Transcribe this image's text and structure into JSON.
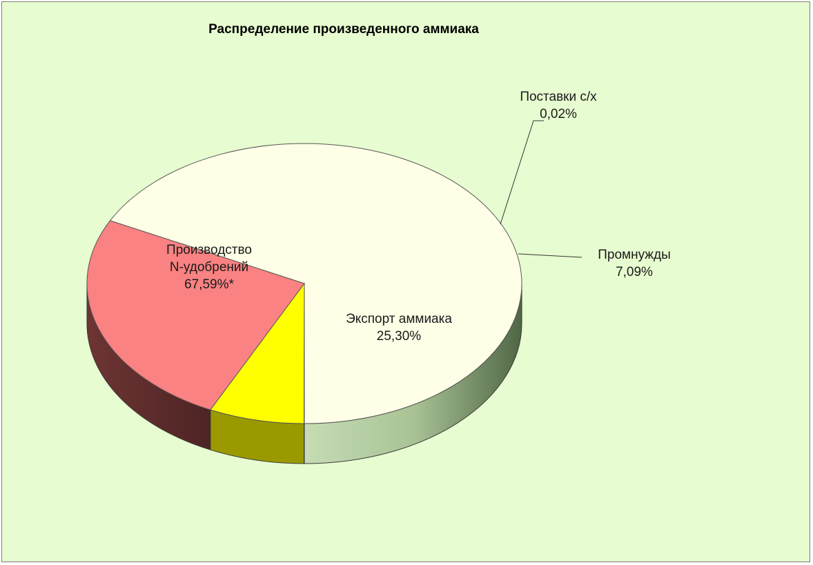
{
  "chart_data": {
    "type": "pie",
    "title": "Распределение произведенного аммиака",
    "series": [
      {
        "values": [
          67.59,
          25.3,
          7.09,
          0.02
        ],
        "slices": [
          {
            "label_lines": [
              "Производство",
              "N-удобрений",
              "67,59%*"
            ],
            "value": 67.59,
            "color": "#feffe6",
            "side_color": "#b8cfa6"
          },
          {
            "label_lines": [
              "Экспорт аммиака",
              "25,30%"
            ],
            "value": 25.3,
            "color": "#fa8282",
            "side_color": "#6e3535"
          },
          {
            "label_lines": [
              "Промнужды",
              "7,09%"
            ],
            "value": 7.09,
            "color": "#ffff00",
            "side_color": "#9a9a00"
          },
          {
            "label_lines": [
              "Поставки с/х",
              "0,02%"
            ],
            "value": 0.02,
            "color": "#bbbbbb",
            "side_color": "#777777"
          }
        ]
      }
    ],
    "legend": "none",
    "style": "3d"
  },
  "colors": {
    "background": "#e7fcd0",
    "outline": "#7a7a7a"
  }
}
